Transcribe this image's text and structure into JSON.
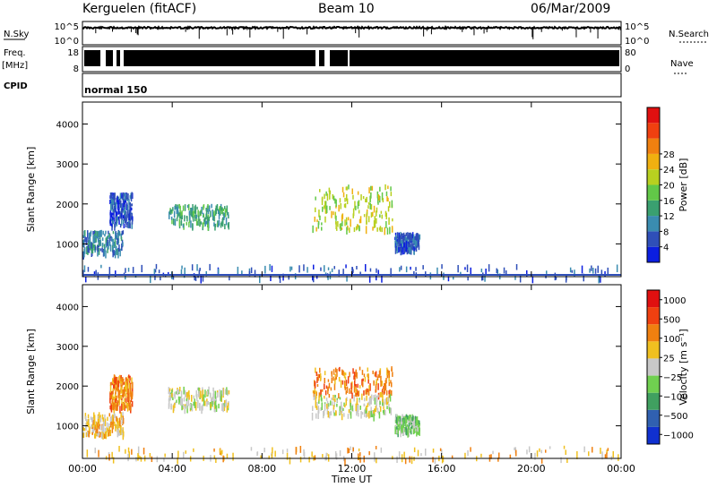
{
  "header": {
    "station": "Kerguelen (fitACF)",
    "beam": "Beam 10",
    "date": "06/Mar/2009"
  },
  "strips": {
    "nsky_label": "N.Sky",
    "nsky_ticks": [
      "10^5",
      "10^0"
    ],
    "nsearch_label": "N.Search",
    "nsearch_ticks": [
      "10^5",
      "10^0"
    ],
    "freq_label": "Freq.",
    "freq_unit": "[MHz]",
    "freq_ticks": [
      "18",
      "8"
    ],
    "nave_label": "Nave",
    "nave_ticks": [
      "80",
      "0"
    ],
    "cpid_label": "CPID",
    "cpid_value": "normal 150"
  },
  "chart_data": [
    {
      "type": "heatmap",
      "name": "power",
      "ylabel": "Slant Range [km]",
      "xlabel": "",
      "x_ticks": [
        "00:00",
        "04:00",
        "08:00",
        "12:00",
        "16:00",
        "20:00",
        "00:00"
      ],
      "xlim_hours": [
        0,
        24
      ],
      "ylim": [
        180,
        4550
      ],
      "y_ticks": [
        1000,
        2000,
        3000,
        4000
      ],
      "colorbar_label": "Power [dB]",
      "colorbar_ticks": [
        "4",
        "8",
        "12",
        "16",
        "20",
        "24",
        "28"
      ],
      "colorbar_colors": [
        "#0b1ee0",
        "#2f4fb8",
        "#3a8cb0",
        "#3aa070",
        "#62c848",
        "#b8d020",
        "#f0b010",
        "#f08010",
        "#f04010",
        "#e01010"
      ],
      "regions": [
        {
          "t0": 0.0,
          "t1": 1.8,
          "r0": 800,
          "r1": 1350,
          "level": 2
        },
        {
          "t0": 1.2,
          "t1": 2.2,
          "r0": 1500,
          "r1": 2300,
          "level": 1
        },
        {
          "t0": 3.8,
          "t1": 6.5,
          "r0": 1500,
          "r1": 2000,
          "level": 3
        },
        {
          "t0": 10.2,
          "t1": 13.8,
          "r0": 1400,
          "r1": 2500,
          "level": 5
        },
        {
          "t0": 13.9,
          "t1": 15.0,
          "r0": 900,
          "r1": 1300,
          "level": 1
        },
        {
          "t0": 0.0,
          "t1": 24.0,
          "r0": 180,
          "r1": 500,
          "level": 1
        }
      ]
    },
    {
      "type": "heatmap",
      "name": "velocity",
      "ylabel": "Slant Range [km]",
      "xlabel": "Time UT",
      "x_ticks": [
        "00:00",
        "04:00",
        "08:00",
        "12:00",
        "16:00",
        "20:00",
        "00:00"
      ],
      "xlim_hours": [
        0,
        24
      ],
      "ylim": [
        180,
        4550
      ],
      "y_ticks": [
        1000,
        2000,
        3000,
        4000
      ],
      "colorbar_label": "Velocity [m s⁻¹]",
      "colorbar_ticks": [
        "1000",
        "500",
        "100",
        "25",
        "−25",
        "−100",
        "−500",
        "−1000"
      ],
      "colorbar_colors": [
        "#1030d0",
        "#3060b0",
        "#40a060",
        "#70d050",
        "#c8c8c8",
        "#f0c020",
        "#f08010",
        "#f04010",
        "#e01010"
      ],
      "regions": [
        {
          "t0": 0.0,
          "t1": 1.8,
          "r0": 800,
          "r1": 1350,
          "level": 5
        },
        {
          "t0": 1.2,
          "t1": 2.2,
          "r0": 1500,
          "r1": 2300,
          "level": 6
        },
        {
          "t0": 3.8,
          "t1": 6.5,
          "r0": 1500,
          "r1": 2000,
          "level": 4
        },
        {
          "t0": 10.2,
          "t1": 13.8,
          "r0": 1800,
          "r1": 2500,
          "level": 6
        },
        {
          "t0": 10.2,
          "t1": 13.8,
          "r0": 1300,
          "r1": 1800,
          "level": 4
        },
        {
          "t0": 13.9,
          "t1": 15.0,
          "r0": 900,
          "r1": 1300,
          "level": 3
        },
        {
          "t0": 0.0,
          "t1": 24.0,
          "r0": 180,
          "r1": 500,
          "level": 5
        }
      ]
    }
  ]
}
